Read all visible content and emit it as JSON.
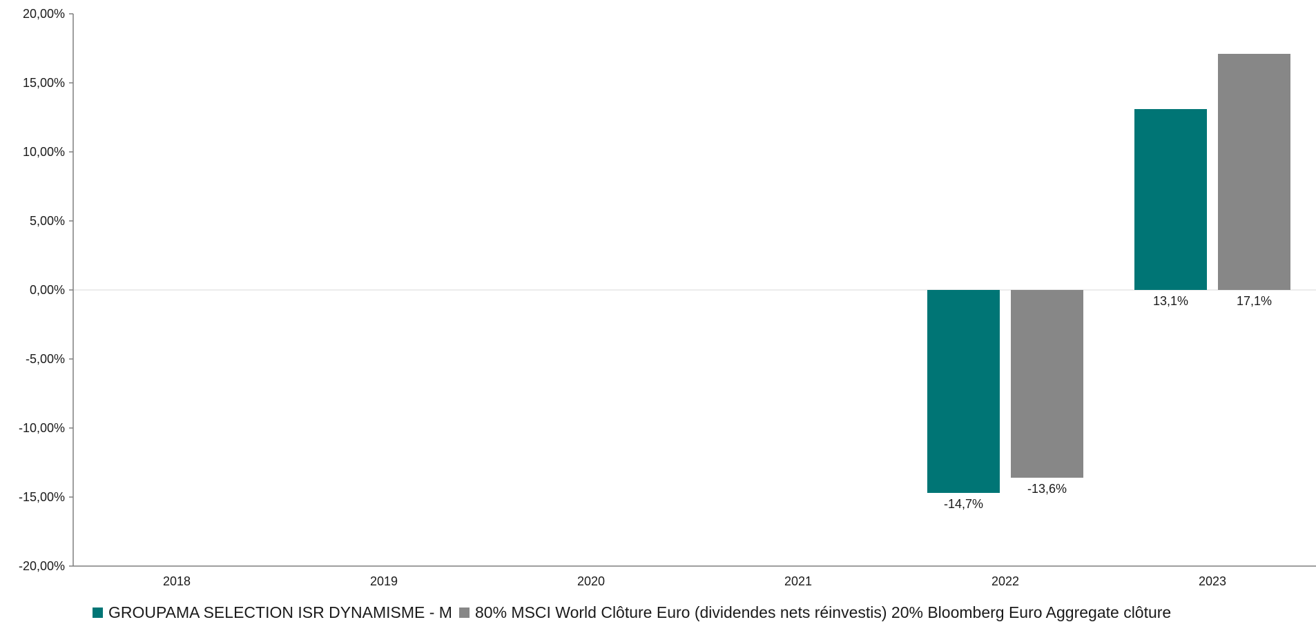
{
  "chart_data": {
    "type": "bar",
    "categories": [
      "2018",
      "2019",
      "2020",
      "2021",
      "2022",
      "2023"
    ],
    "series": [
      {
        "name": "GROUPAMA SELECTION ISR DYNAMISME - M",
        "color": "#007575",
        "values": [
          null,
          null,
          null,
          null,
          -14.7,
          13.1
        ],
        "labels": [
          "",
          "",
          "",
          "",
          "-14,7%",
          "13,1%"
        ]
      },
      {
        "name": "80% MSCI World Clôture Euro (dividendes nets réinvestis)  20% Bloomberg Euro Aggregate clôture",
        "color": "#878787",
        "values": [
          null,
          null,
          null,
          null,
          -13.6,
          17.1
        ],
        "labels": [
          "",
          "",
          "",
          "",
          "-13,6%",
          "17,1%"
        ]
      }
    ],
    "ylim": [
      -20,
      20
    ],
    "yticks": [
      20,
      15,
      10,
      5,
      0,
      -5,
      -10,
      -15,
      -20
    ],
    "ytick_labels": [
      "20,00%",
      "15,00%",
      "10,00%",
      "5,00%",
      "0,00%",
      "-5,00%",
      "-10,00%",
      "-15,00%",
      "-20,00%"
    ],
    "title": "",
    "xlabel": "",
    "ylabel": "",
    "grid": false,
    "legend_position": "bottom"
  }
}
